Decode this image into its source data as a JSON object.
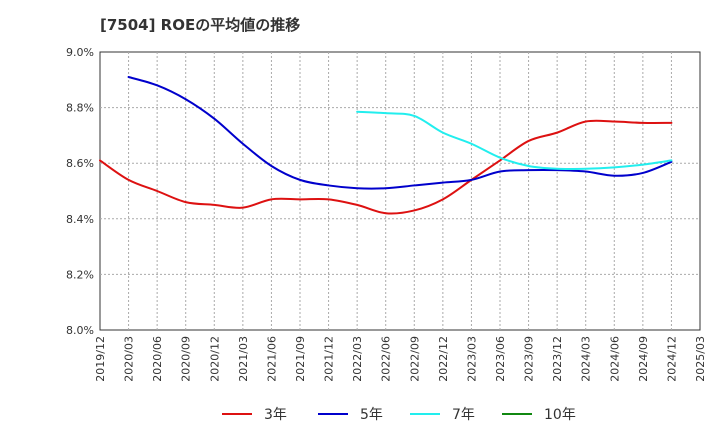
{
  "chart_data": {
    "type": "line",
    "title": "[7504]  ROEの平均値の推移",
    "xlabel": "",
    "ylabel": "",
    "ylim": [
      8.0,
      9.0
    ],
    "yticks": [
      "8.0%",
      "8.2%",
      "8.4%",
      "8.6%",
      "8.8%",
      "9.0%"
    ],
    "ytick_values": [
      8.0,
      8.2,
      8.4,
      8.6,
      8.8,
      9.0
    ],
    "categories": [
      "2019/12",
      "2020/03",
      "2020/06",
      "2020/09",
      "2020/12",
      "2021/03",
      "2021/06",
      "2021/09",
      "2021/12",
      "2022/03",
      "2022/06",
      "2022/09",
      "2022/12",
      "2023/03",
      "2023/06",
      "2023/09",
      "2023/12",
      "2024/03",
      "2024/06",
      "2024/09",
      "2024/12",
      "2025/03"
    ],
    "grid": true,
    "legend_position": "bottom",
    "series": [
      {
        "name": "3年",
        "color": "#dd1111",
        "values": [
          8.61,
          8.54,
          8.5,
          8.46,
          8.45,
          8.44,
          8.47,
          8.47,
          8.47,
          8.45,
          8.42,
          8.43,
          8.47,
          8.54,
          8.61,
          8.68,
          8.71,
          8.75,
          8.75,
          8.745,
          8.745,
          null
        ]
      },
      {
        "name": "5年",
        "color": "#0000cc",
        "values": [
          null,
          8.91,
          8.88,
          8.83,
          8.76,
          8.67,
          8.59,
          8.54,
          8.52,
          8.51,
          8.51,
          8.52,
          8.53,
          8.54,
          8.57,
          8.575,
          8.575,
          8.57,
          8.555,
          8.565,
          8.605,
          null
        ]
      },
      {
        "name": "7年",
        "color": "#22eeee",
        "values": [
          null,
          null,
          null,
          null,
          null,
          null,
          null,
          null,
          null,
          8.785,
          8.78,
          8.77,
          8.71,
          8.67,
          8.62,
          8.59,
          8.58,
          8.58,
          8.585,
          8.595,
          8.61,
          null
        ]
      },
      {
        "name": "10年",
        "color": "#118811",
        "values": [
          null,
          null,
          null,
          null,
          null,
          null,
          null,
          null,
          null,
          null,
          null,
          null,
          null,
          null,
          null,
          null,
          null,
          null,
          null,
          null,
          null,
          null
        ]
      }
    ]
  }
}
